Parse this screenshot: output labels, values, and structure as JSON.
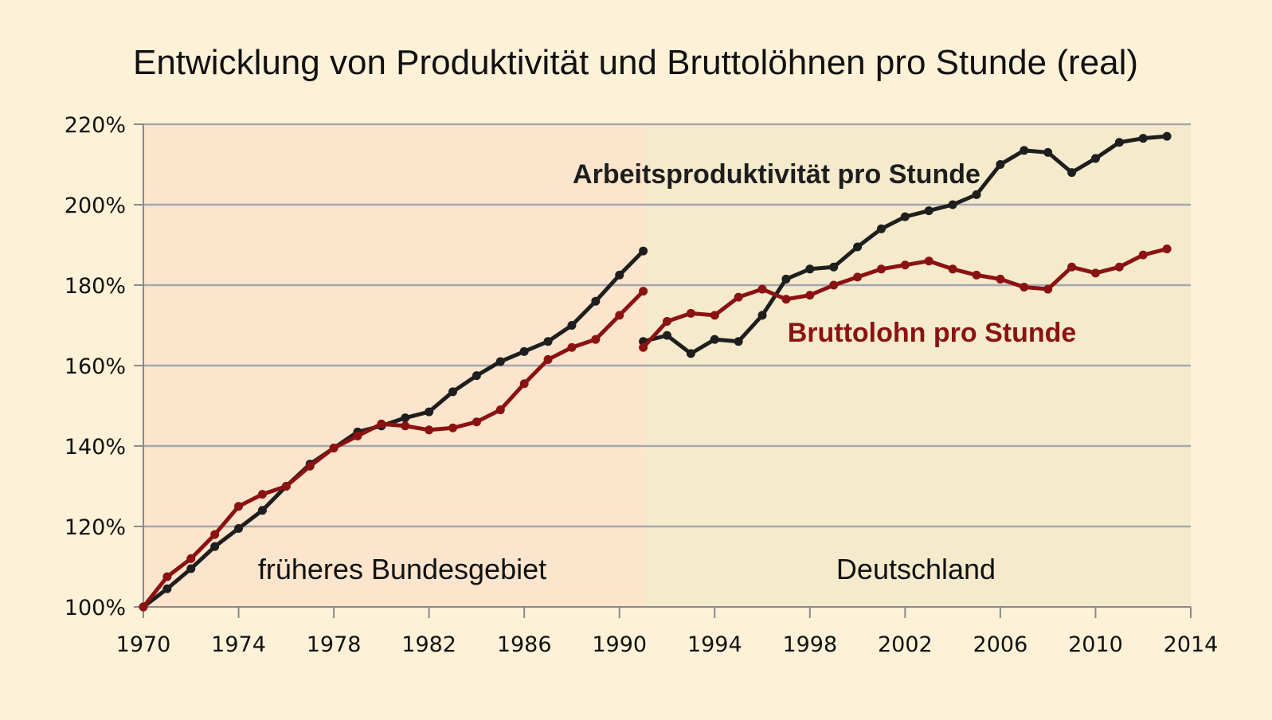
{
  "chart_data": {
    "type": "line",
    "title": "Entwicklung von Produktivität und Bruttolöhnen pro Stunde (real)",
    "xlim": [
      1970,
      2014
    ],
    "ylim": [
      100,
      220
    ],
    "x_ticks": [
      "1970",
      "1974",
      "1978",
      "1982",
      "1986",
      "1990",
      "1994",
      "1998",
      "2002",
      "2006",
      "2010",
      "2014"
    ],
    "y_ticks": [
      "100%",
      "120%",
      "140%",
      "160%",
      "180%",
      "200%",
      "220%"
    ],
    "grid": true,
    "regions": [
      {
        "label": "früheres Bundesgebiet",
        "from": 1970,
        "to": 1991,
        "color": "#fce5cc"
      },
      {
        "label": "Deutschland",
        "from": 1991,
        "to": 2014,
        "color": "#f5ebcc"
      }
    ],
    "series": [
      {
        "name": "Arbeitsproduktivität pro Stunde",
        "color": "#1e1e1e",
        "segments": [
          {
            "x": [
              1970,
              1971,
              1972,
              1973,
              1974,
              1975,
              1976,
              1977,
              1978,
              1979,
              1980,
              1981,
              1982,
              1983,
              1984,
              1985,
              1986,
              1987,
              1988,
              1989,
              1990,
              1991
            ],
            "y": [
              100,
              104.5,
              109.5,
              115,
              119.5,
              124,
              130,
              135.5,
              139.5,
              143.5,
              145,
              147,
              148.5,
              153.5,
              157.5,
              161,
              163.5,
              166,
              170,
              176,
              182.5,
              188.5
            ]
          },
          {
            "x": [
              1991,
              1992,
              1993,
              1994,
              1995,
              1996,
              1997,
              1998,
              1999,
              2000,
              2001,
              2002,
              2003,
              2004,
              2005,
              2006,
              2007,
              2008,
              2009,
              2010,
              2011,
              2012,
              2013
            ],
            "y": [
              166,
              167.5,
              163,
              166.5,
              166,
              172.5,
              181.5,
              184,
              184.5,
              189.5,
              194,
              197,
              198.5,
              200,
              202.5,
              210,
              213.5,
              213,
              208,
              211.5,
              215.5,
              216.5,
              217
            ]
          }
        ]
      },
      {
        "name": "Bruttolohn pro Stunde",
        "color": "#8b1212",
        "segments": [
          {
            "x": [
              1970,
              1971,
              1972,
              1973,
              1974,
              1975,
              1976,
              1977,
              1978,
              1979,
              1980,
              1981,
              1982,
              1983,
              1984,
              1985,
              1986,
              1987,
              1988,
              1989,
              1990,
              1991
            ],
            "y": [
              100,
              107.5,
              112,
              118,
              125,
              128,
              130,
              135,
              139.5,
              142.5,
              145.5,
              145,
              144,
              144.5,
              146,
              149,
              155.5,
              161.5,
              164.5,
              166.5,
              172.5,
              178.5
            ]
          },
          {
            "x": [
              1991,
              1992,
              1993,
              1994,
              1995,
              1996,
              1997,
              1998,
              1999,
              2000,
              2001,
              2002,
              2003,
              2004,
              2005,
              2006,
              2007,
              2008,
              2009,
              2010,
              2011,
              2012,
              2013
            ],
            "y": [
              164.5,
              171,
              173,
              172.5,
              177,
              179,
              176.5,
              177.5,
              180,
              182,
              184,
              185,
              186,
              184,
              182.5,
              181.5,
              179.5,
              179,
              184.5,
              183,
              184.5,
              187.5,
              189
            ]
          }
        ]
      }
    ]
  },
  "annotations": {
    "productivity_label": "Arbeitsproduktivität pro Stunde",
    "wage_label": "Bruttolohn pro Stunde"
  }
}
